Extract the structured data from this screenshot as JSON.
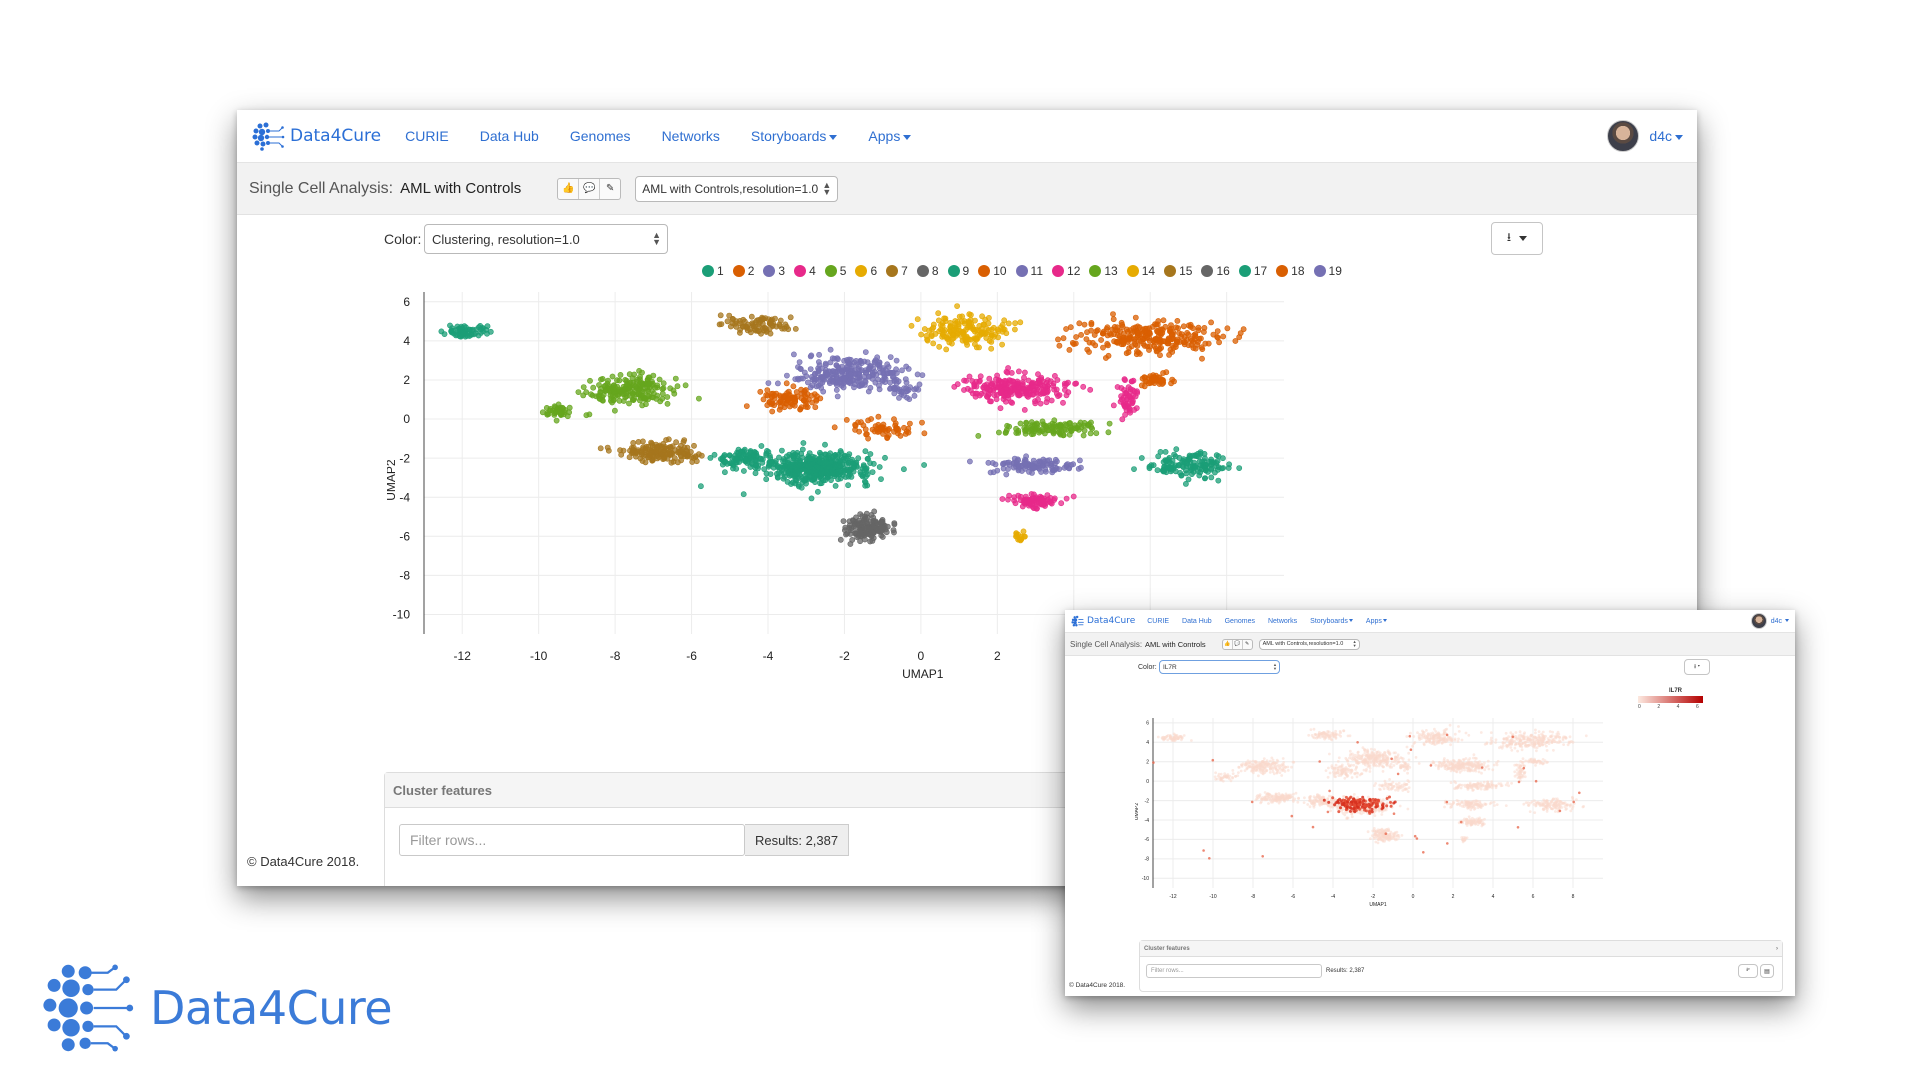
{
  "main": {
    "brand": "Data4Cure",
    "nav": [
      {
        "label": "CURIE",
        "caret": false
      },
      {
        "label": "Data Hub",
        "caret": false
      },
      {
        "label": "Genomes",
        "caret": false
      },
      {
        "label": "Networks",
        "caret": false
      },
      {
        "label": "Storyboards",
        "caret": true
      },
      {
        "label": "Apps",
        "caret": true
      }
    ],
    "user": "d4c",
    "page_label": "Single Cell Analysis:",
    "page_title": "AML with Controls",
    "dataset_select": "AML with Controls,resolution=1.0",
    "color_label": "Color:",
    "color_select": "Clustering, resolution=1.0",
    "legend": [
      {
        "label": "1",
        "color": "#1b9e77"
      },
      {
        "label": "2",
        "color": "#d95f02"
      },
      {
        "label": "3",
        "color": "#7570b3"
      },
      {
        "label": "4",
        "color": "#e7298a"
      },
      {
        "label": "5",
        "color": "#66a61e"
      },
      {
        "label": "6",
        "color": "#e6ab02"
      },
      {
        "label": "7",
        "color": "#a6761d"
      },
      {
        "label": "8",
        "color": "#666666"
      },
      {
        "label": "9",
        "color": "#1b9e77"
      },
      {
        "label": "10",
        "color": "#d95f02"
      },
      {
        "label": "11",
        "color": "#7570b3"
      },
      {
        "label": "12",
        "color": "#e7298a"
      },
      {
        "label": "13",
        "color": "#66a61e"
      },
      {
        "label": "14",
        "color": "#e6ab02"
      },
      {
        "label": "15",
        "color": "#a6761d"
      },
      {
        "label": "16",
        "color": "#666666"
      },
      {
        "label": "17",
        "color": "#1b9e77"
      },
      {
        "label": "18",
        "color": "#d95f02"
      },
      {
        "label": "19",
        "color": "#7570b3"
      }
    ],
    "cluster_features": "Cluster features",
    "filter_placeholder": "Filter rows...",
    "results": "Results: 2,387",
    "copyright": "© Data4Cure 2018."
  },
  "inset": {
    "brand": "Data4Cure",
    "nav": [
      {
        "label": "CURIE",
        "caret": false
      },
      {
        "label": "Data Hub",
        "caret": false
      },
      {
        "label": "Genomes",
        "caret": false
      },
      {
        "label": "Networks",
        "caret": false
      },
      {
        "label": "Storyboards",
        "caret": true
      },
      {
        "label": "Apps",
        "caret": true
      }
    ],
    "user": "d4c",
    "page_label": "Single Cell Analysis:",
    "page_title": "AML with Controls",
    "dataset_select": "AML with Controls,resolution=1.0",
    "color_label": "Color:",
    "color_select": "IL7R",
    "colorbar_title": "IL7R",
    "colorbar_ticks": [
      "0",
      "2",
      "4",
      "6"
    ],
    "cluster_features": "Cluster features",
    "filter_placeholder": "Filter rows...",
    "results": "Results: 2,387",
    "copyright": "© Data4Cure 2018."
  },
  "footer_logo": "Data4Cure",
  "chart_data": [
    {
      "type": "scatter",
      "title": "",
      "xlabel": "UMAP1",
      "ylabel": "UMAP2",
      "xlim": [
        -13,
        9.5
      ],
      "ylim": [
        -11,
        6.5
      ],
      "xticks": [
        -12,
        -10,
        -8,
        -6,
        -4,
        -2,
        0,
        2,
        4,
        6,
        8
      ],
      "yticks": [
        6,
        4,
        2,
        0,
        -2,
        -4,
        -6,
        -8,
        -10
      ],
      "grid": true,
      "legend": "top",
      "series": [
        {
          "name": "1",
          "clusters": [
            {
              "cx": -2.7,
              "cy": -2.5,
              "sx": 1.3,
              "sy": 0.7,
              "n": 480
            },
            {
              "cx": -4.7,
              "cy": -2.0,
              "sx": 0.6,
              "sy": 0.5,
              "n": 90
            }
          ]
        },
        {
          "name": "2",
          "clusters": [
            {
              "cx": 5.9,
              "cy": 4.2,
              "sx": 1.7,
              "sy": 0.75,
              "n": 260
            },
            {
              "cx": 6.2,
              "cy": 2.0,
              "sx": 0.5,
              "sy": 0.25,
              "n": 40
            }
          ]
        },
        {
          "name": "3",
          "clusters": [
            {
              "cx": -1.9,
              "cy": 2.3,
              "sx": 1.3,
              "sy": 0.75,
              "n": 260
            }
          ]
        },
        {
          "name": "4",
          "clusters": [
            {
              "cx": 2.5,
              "cy": 1.6,
              "sx": 1.2,
              "sy": 0.65,
              "n": 230
            },
            {
              "cx": 5.4,
              "cy": 1.0,
              "sx": 0.25,
              "sy": 0.9,
              "n": 50
            }
          ]
        },
        {
          "name": "5",
          "clusters": [
            {
              "cx": -7.5,
              "cy": 1.5,
              "sx": 1.1,
              "sy": 0.65,
              "n": 190
            },
            {
              "cx": -9.4,
              "cy": 0.4,
              "sx": 0.45,
              "sy": 0.3,
              "n": 40
            }
          ]
        },
        {
          "name": "6",
          "clusters": [
            {
              "cx": 1.2,
              "cy": 4.5,
              "sx": 1.0,
              "sy": 0.7,
              "n": 160
            }
          ]
        },
        {
          "name": "7",
          "clusters": [
            {
              "cx": -6.8,
              "cy": -1.7,
              "sx": 0.9,
              "sy": 0.45,
              "n": 150
            }
          ]
        },
        {
          "name": "8",
          "clusters": [
            {
              "cx": -1.4,
              "cy": -5.6,
              "sx": 0.55,
              "sy": 0.55,
              "n": 150
            }
          ]
        },
        {
          "name": "9",
          "clusters": [
            {
              "cx": -12.0,
              "cy": 4.5,
              "sx": 0.55,
              "sy": 0.3,
              "n": 60
            }
          ]
        },
        {
          "name": "10",
          "clusters": [
            {
              "cx": -3.5,
              "cy": 1.0,
              "sx": 0.7,
              "sy": 0.55,
              "n": 90
            }
          ]
        },
        {
          "name": "11",
          "clusters": [
            {
              "cx": 2.9,
              "cy": -2.4,
              "sx": 1.0,
              "sy": 0.35,
              "n": 110
            }
          ]
        },
        {
          "name": "12",
          "clusters": [
            {
              "cx": 3.0,
              "cy": -4.2,
              "sx": 0.6,
              "sy": 0.35,
              "n": 80
            }
          ]
        },
        {
          "name": "13",
          "clusters": [
            {
              "cx": 3.3,
              "cy": -0.5,
              "sx": 1.1,
              "sy": 0.35,
              "n": 110
            }
          ]
        },
        {
          "name": "14",
          "clusters": [
            {
              "cx": 2.6,
              "cy": -6.0,
              "sx": 0.2,
              "sy": 0.3,
              "n": 15
            }
          ]
        },
        {
          "name": "15",
          "clusters": [
            {
              "cx": -4.3,
              "cy": 4.8,
              "sx": 0.8,
              "sy": 0.45,
              "n": 80
            }
          ]
        },
        {
          "name": "16",
          "clusters": []
        },
        {
          "name": "17",
          "clusters": [
            {
              "cx": 7.0,
              "cy": -2.4,
              "sx": 1.0,
              "sy": 0.55,
              "n": 140
            }
          ]
        },
        {
          "name": "18",
          "clusters": [
            {
              "cx": -1.0,
              "cy": -0.5,
              "sx": 0.8,
              "sy": 0.5,
              "n": 60
            }
          ]
        },
        {
          "name": "19",
          "clusters": [
            {
              "cx": -0.4,
              "cy": 1.5,
              "sx": 0.3,
              "sy": 0.4,
              "n": 30
            }
          ]
        }
      ]
    },
    {
      "type": "scatter",
      "title": "",
      "xlabel": "UMAP1",
      "ylabel": "UMAP2",
      "xlim": [
        -13,
        9.5
      ],
      "ylim": [
        -11,
        6.5
      ],
      "xticks": [
        -12,
        -10,
        -8,
        -6,
        -4,
        -2,
        0,
        2,
        4,
        6,
        8
      ],
      "yticks": [
        6,
        4,
        2,
        0,
        -2,
        -4,
        -6,
        -8,
        -10
      ],
      "grid": true,
      "color_scale": {
        "variable": "IL7R",
        "range": [
          0,
          7
        ],
        "low": "#fde9e0",
        "high": "#b40000"
      },
      "high_expression_region": {
        "cx": -2.7,
        "cy": -2.4,
        "sx": 1.2,
        "sy": 0.6
      }
    }
  ]
}
